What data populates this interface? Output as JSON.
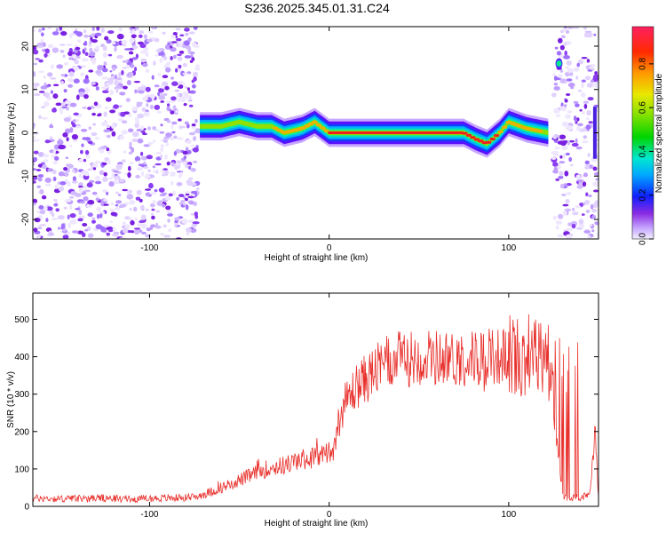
{
  "title": "S236.2025.345.01.31.C24",
  "colors": {
    "snr_line": "#e8302c",
    "axis": "#000000"
  },
  "chart_data": [
    {
      "type": "heatmap",
      "name": "spectrogram",
      "xlabel": "Height of straight line (km)",
      "ylabel": "Frequency (Hz)",
      "xlim": [
        -165,
        150
      ],
      "ylim": [
        -24.5,
        24.5
      ],
      "xticks": [
        -100,
        0,
        100
      ],
      "xtick_labels": [
        "-100",
        "0",
        "100"
      ],
      "yticks": [
        20,
        10,
        0,
        -10,
        -20
      ],
      "ytick_labels": [
        "20",
        "10",
        "0",
        "-10",
        "-20"
      ],
      "colorbar": {
        "label": "Normalized spectral amplitude",
        "range": [
          0,
          0.97
        ],
        "ticks": [
          0.0,
          0.2,
          0.4,
          0.6,
          0.8
        ],
        "tick_labels": [
          "0.0",
          "0.2",
          "0.4",
          "0.6",
          "0.8"
        ]
      },
      "signal_ridge": {
        "x": [
          -72,
          -60,
          -50,
          -40,
          -32,
          -25,
          -15,
          -8,
          0,
          20,
          40,
          60,
          75,
          82,
          88,
          95,
          100,
          110,
          122
        ],
        "y": [
          1.5,
          1.5,
          2.5,
          1.5,
          1.5,
          0,
          1,
          2.5,
          0,
          0,
          0,
          0,
          0,
          -1.5,
          -2.5,
          0,
          2.5,
          1,
          0
        ],
        "peak_amplitude": 0.95
      },
      "noise_regions": [
        {
          "x_range": [
            -165,
            -73
          ],
          "density": 0.8
        },
        {
          "x_range": [
            125,
            150
          ],
          "density": 0.7
        }
      ]
    },
    {
      "type": "line",
      "name": "snr",
      "xlabel": "Height of straight line (km)",
      "ylabel": "SNR (10 * v/v)",
      "xlim": [
        -165,
        150
      ],
      "ylim": [
        0,
        570
      ],
      "xticks": [
        -100,
        0,
        100
      ],
      "xtick_labels": [
        "-100",
        "0",
        "100"
      ],
      "yticks": [
        0,
        100,
        200,
        300,
        400,
        500
      ],
      "ytick_labels": [
        "0",
        "100",
        "200",
        "300",
        "400",
        "500"
      ],
      "series": [
        {
          "name": "SNR",
          "x": [
            -165,
            -150,
            -130,
            -110,
            -90,
            -75,
            -65,
            -55,
            -45,
            -35,
            -25,
            -15,
            -5,
            2,
            5,
            8,
            15,
            25,
            35,
            50,
            70,
            90,
            110,
            120,
            123,
            130,
            140,
            145,
            148,
            150
          ],
          "y": [
            22,
            20,
            22,
            20,
            22,
            25,
            40,
            60,
            80,
            100,
            110,
            125,
            135,
            150,
            220,
            270,
            320,
            360,
            390,
            400,
            395,
            400,
            405,
            400,
            380,
            25,
            25,
            30,
            200,
            20
          ]
        }
      ]
    }
  ]
}
